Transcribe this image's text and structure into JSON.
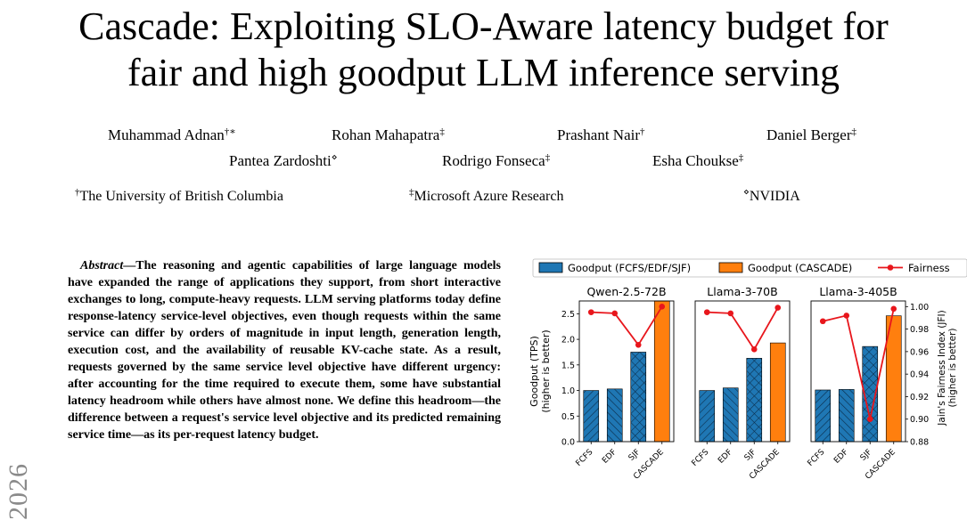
{
  "paper": {
    "title_line1": "Cascade: Exploiting SLO-Aware latency budget for",
    "title_line2": "fair and high goodput LLM inference serving",
    "authors": [
      {
        "name": "Muhammad Adnan",
        "mark": "†∗"
      },
      {
        "name": "Rohan Mahapatra",
        "mark": "‡"
      },
      {
        "name": "Prashant Nair",
        "mark": "†"
      },
      {
        "name": "Daniel Berger",
        "mark": "‡"
      },
      {
        "name": "Pantea Zardoshti",
        "mark": "⋄"
      },
      {
        "name": "Rodrigo Fonseca",
        "mark": "‡"
      },
      {
        "name": "Esha Choukse",
        "mark": "‡"
      }
    ],
    "affiliations": [
      {
        "mark": "†",
        "name": "The University of British Columbia"
      },
      {
        "mark": "‡",
        "name": "Microsoft Azure Research"
      },
      {
        "mark": "⋄",
        "name": "NVIDIA"
      }
    ],
    "side_year": "2026",
    "abstract_lead": "Abstract",
    "abstract_text": "—The reasoning and agentic capabilities of large language models have expanded the range of applications they support, from short interactive exchanges to long, compute-heavy requests. LLM serving platforms today define response-latency service-level objectives, even though requests within the same service can differ by orders of magnitude in input length, generation length, execution cost, and the availability of reusable KV-cache state. As a result, requests governed by the same service level objective have different urgency: after accounting for the time required to execute them, some have substantial latency headroom while others have almost none. We define this headroom—the difference between a request's service level objective and its predicted remaining service time—as its per-request latency budget."
  },
  "chart_data": {
    "type": "bar",
    "colors": {
      "baseline": "#1f77b4",
      "cascade": "#ff7f0e",
      "fairness": "#e8161c"
    },
    "legend": [
      "Goodput (FCFS/EDF/SJF)",
      "Goodput (CASCADE)",
      "Fairness"
    ],
    "legend_placement": "top",
    "categories": [
      "FCFS",
      "EDF",
      "SJF",
      "CASCADE"
    ],
    "ylabel_left_line1": "Goodput (TPS)",
    "ylabel_left_line2": "(higher is better)",
    "ylabel_right_line1": "Jain's Fairness Index (JFI)",
    "ylabel_right_line2": "(higher is better)",
    "ylim_left": [
      0,
      2.75
    ],
    "yticks_left": [
      "0.0",
      "0.5",
      "1.0",
      "1.5",
      "2.0",
      "2.5"
    ],
    "ylim_right": [
      0.88,
      1.005
    ],
    "yticks_right": [
      "0.88",
      "0.90",
      "0.92",
      "0.94",
      "0.96",
      "0.98",
      "1.00"
    ],
    "panels": [
      {
        "title": "Qwen-2.5-72B",
        "goodput": [
          1.0,
          1.03,
          1.75,
          2.75
        ],
        "fairness": [
          0.995,
          0.994,
          0.966,
          1.0
        ]
      },
      {
        "title": "Llama-3-70B",
        "goodput": [
          1.0,
          1.05,
          1.63,
          1.93
        ],
        "fairness": [
          0.995,
          0.994,
          0.962,
          0.999
        ]
      },
      {
        "title": "Llama-3-405B",
        "goodput": [
          1.01,
          1.02,
          1.86,
          2.46
        ],
        "fairness": [
          0.987,
          0.992,
          0.9,
          0.998
        ]
      }
    ]
  }
}
